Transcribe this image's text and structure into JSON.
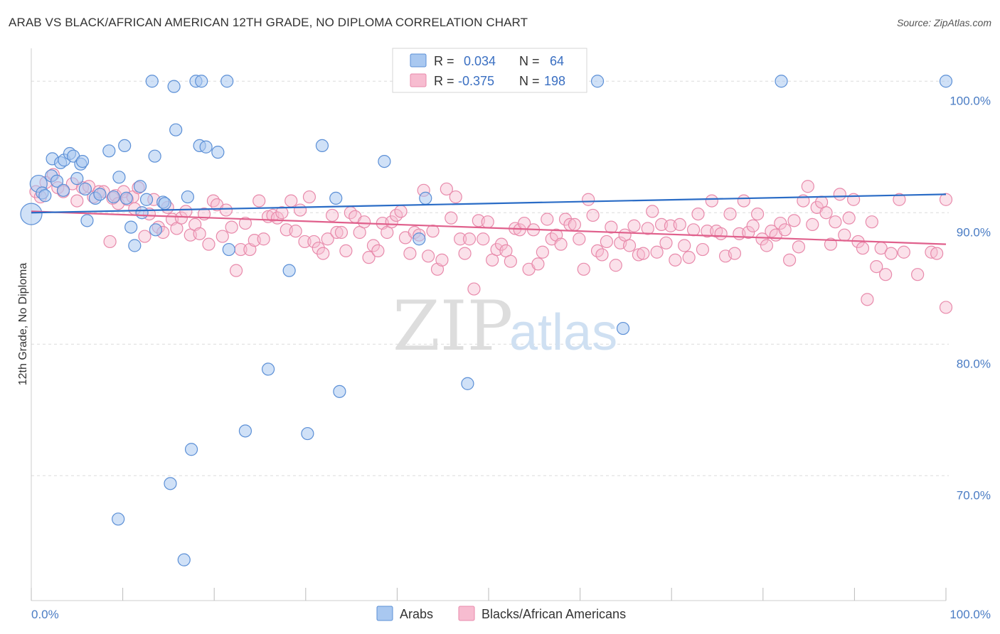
{
  "header": {
    "title": "ARAB VS BLACK/AFRICAN AMERICAN 12TH GRADE, NO DIPLOMA CORRELATION CHART",
    "source": "Source: ZipAtlas.com"
  },
  "watermark": {
    "zip": "ZIP",
    "atlas": "atlas"
  },
  "colors": {
    "arabs_fill": "#a9c8f0",
    "arabs_stroke": "#5b8fd6",
    "arabs_line": "#2a6cc6",
    "black_fill": "#f7bcd0",
    "black_stroke": "#e88aab",
    "black_line": "#e0608c",
    "grid": "#dcdcdc",
    "axis_text": "#4a7cc4"
  },
  "legend": {
    "rows": [
      {
        "r_label": "R =",
        "r_value": "0.034",
        "n_label": "N =",
        "n_value": "64"
      },
      {
        "r_label": "R =",
        "r_value": "-0.375",
        "n_label": "N =",
        "n_value": "198"
      }
    ]
  },
  "bottom_legend": {
    "arabs": "Arabs",
    "black": "Blacks/African Americans"
  },
  "chart_data": {
    "type": "scatter",
    "title": "ARAB VS BLACK/AFRICAN AMERICAN 12TH GRADE, NO DIPLOMA CORRELATION CHART",
    "xlabel": "",
    "ylabel": "12th Grade, No Diploma",
    "xlim": [
      0,
      100
    ],
    "ylim": [
      60.5,
      102.5
    ],
    "x_tick_labels": [
      "0.0%",
      "100.0%"
    ],
    "y_ticks": [
      70,
      80,
      90,
      100
    ],
    "y_tick_labels": [
      "70.0%",
      "80.0%",
      "90.0%",
      "100.0%"
    ],
    "grid": true,
    "legend_position": "top-center",
    "series": [
      {
        "name": "Arabs",
        "r": 0.034,
        "n": 64,
        "trend": {
          "y_at_0": 90.0,
          "y_at_100": 91.4
        },
        "points": [
          [
            0.0,
            89.9
          ],
          [
            0.8,
            92.2
          ],
          [
            1.2,
            91.5
          ],
          [
            1.5,
            91.3
          ],
          [
            2.2,
            92.8
          ],
          [
            2.3,
            94.1
          ],
          [
            2.8,
            92.4
          ],
          [
            3.2,
            93.8
          ],
          [
            3.5,
            91.7
          ],
          [
            3.6,
            94.0
          ],
          [
            4.2,
            94.5
          ],
          [
            4.6,
            94.3
          ],
          [
            5.0,
            92.6
          ],
          [
            5.4,
            93.7
          ],
          [
            5.6,
            93.9
          ],
          [
            5.9,
            91.8
          ],
          [
            6.1,
            89.4
          ],
          [
            7.0,
            91.1
          ],
          [
            7.5,
            91.4
          ],
          [
            8.5,
            94.7
          ],
          [
            9.0,
            91.2
          ],
          [
            9.6,
            92.7
          ],
          [
            10.2,
            95.1
          ],
          [
            10.4,
            91.1
          ],
          [
            10.9,
            88.9
          ],
          [
            11.3,
            87.5
          ],
          [
            11.9,
            92.0
          ],
          [
            12.1,
            90.0
          ],
          [
            12.6,
            91.0
          ],
          [
            13.2,
            100.0
          ],
          [
            13.5,
            94.3
          ],
          [
            13.6,
            88.7
          ],
          [
            14.4,
            90.8
          ],
          [
            14.6,
            90.7
          ],
          [
            15.6,
            99.6
          ],
          [
            15.8,
            96.3
          ],
          [
            17.1,
            91.2
          ],
          [
            18.0,
            100.0
          ],
          [
            18.4,
            95.1
          ],
          [
            18.6,
            100.0
          ],
          [
            19.1,
            95.0
          ],
          [
            20.4,
            94.6
          ],
          [
            21.4,
            100.0
          ],
          [
            21.6,
            87.2
          ],
          [
            25.9,
            78.1
          ],
          [
            28.2,
            85.6
          ],
          [
            31.8,
            95.1
          ],
          [
            33.3,
            91.1
          ],
          [
            33.7,
            76.4
          ],
          [
            38.6,
            93.9
          ],
          [
            42.4,
            88.0
          ],
          [
            43.1,
            91.1
          ],
          [
            47.3,
            100.0
          ],
          [
            47.7,
            77.0
          ],
          [
            61.9,
            100.0
          ],
          [
            64.7,
            81.2
          ],
          [
            82.0,
            100.0
          ],
          [
            100.0,
            100.0
          ],
          [
            23.4,
            73.4
          ],
          [
            30.2,
            73.2
          ],
          [
            17.5,
            72.0
          ],
          [
            15.2,
            69.4
          ],
          [
            9.5,
            66.7
          ],
          [
            16.7,
            63.6
          ]
        ]
      },
      {
        "name": "Blacks/African Americans",
        "r": -0.375,
        "n": 198,
        "trend": {
          "y_at_0": 90.1,
          "y_at_100": 87.6
        },
        "points": [
          [
            0.5,
            91.6
          ],
          [
            1.0,
            91.2
          ],
          [
            1.6,
            92.3
          ],
          [
            2.4,
            92.9
          ],
          [
            2.9,
            91.9
          ],
          [
            3.5,
            91.6
          ],
          [
            4.5,
            92.2
          ],
          [
            5.0,
            90.9
          ],
          [
            5.6,
            91.9
          ],
          [
            6.3,
            92.0
          ],
          [
            6.8,
            91.2
          ],
          [
            7.4,
            91.6
          ],
          [
            7.9,
            91.6
          ],
          [
            8.6,
            87.8
          ],
          [
            8.9,
            91.1
          ],
          [
            9.2,
            91.3
          ],
          [
            9.5,
            90.7
          ],
          [
            10.1,
            91.6
          ],
          [
            10.5,
            91.0
          ],
          [
            11.1,
            91.2
          ],
          [
            11.3,
            90.3
          ],
          [
            11.7,
            91.9
          ],
          [
            12.4,
            88.2
          ],
          [
            12.9,
            89.9
          ],
          [
            13.4,
            91.0
          ],
          [
            13.9,
            88.9
          ],
          [
            14.4,
            88.5
          ],
          [
            14.9,
            90.4
          ],
          [
            15.4,
            89.5
          ],
          [
            15.9,
            88.8
          ],
          [
            16.4,
            89.6
          ],
          [
            16.9,
            90.1
          ],
          [
            17.4,
            88.3
          ],
          [
            17.9,
            89.1
          ],
          [
            18.4,
            88.4
          ],
          [
            18.9,
            89.9
          ],
          [
            19.4,
            87.6
          ],
          [
            19.9,
            90.9
          ],
          [
            20.3,
            90.6
          ],
          [
            20.9,
            88.2
          ],
          [
            21.3,
            90.2
          ],
          [
            21.9,
            88.9
          ],
          [
            22.4,
            85.6
          ],
          [
            22.9,
            87.2
          ],
          [
            23.4,
            89.2
          ],
          [
            23.9,
            87.2
          ],
          [
            24.4,
            87.9
          ],
          [
            24.9,
            90.9
          ],
          [
            25.4,
            88.0
          ],
          [
            25.9,
            89.7
          ],
          [
            26.4,
            89.8
          ],
          [
            26.9,
            89.6
          ],
          [
            27.4,
            90.0
          ],
          [
            27.9,
            88.7
          ],
          [
            28.4,
            90.9
          ],
          [
            28.9,
            88.6
          ],
          [
            29.4,
            90.2
          ],
          [
            29.9,
            87.8
          ],
          [
            30.4,
            91.2
          ],
          [
            30.9,
            87.8
          ],
          [
            31.4,
            87.3
          ],
          [
            31.9,
            86.9
          ],
          [
            32.4,
            88.0
          ],
          [
            32.9,
            89.8
          ],
          [
            33.4,
            88.5
          ],
          [
            33.9,
            88.5
          ],
          [
            34.4,
            87.1
          ],
          [
            34.9,
            90.0
          ],
          [
            35.4,
            89.7
          ],
          [
            35.9,
            88.5
          ],
          [
            36.4,
            89.3
          ],
          [
            36.9,
            86.6
          ],
          [
            37.4,
            87.5
          ],
          [
            37.9,
            87.1
          ],
          [
            38.4,
            89.2
          ],
          [
            38.9,
            88.5
          ],
          [
            39.4,
            89.3
          ],
          [
            39.9,
            89.8
          ],
          [
            40.4,
            90.1
          ],
          [
            40.9,
            88.1
          ],
          [
            41.4,
            86.9
          ],
          [
            41.9,
            88.5
          ],
          [
            42.4,
            88.3
          ],
          [
            42.9,
            91.7
          ],
          [
            43.4,
            86.7
          ],
          [
            43.9,
            88.6
          ],
          [
            44.4,
            85.7
          ],
          [
            44.9,
            86.4
          ],
          [
            45.4,
            91.8
          ],
          [
            45.9,
            89.6
          ],
          [
            46.4,
            91.2
          ],
          [
            46.9,
            88.0
          ],
          [
            47.4,
            86.9
          ],
          [
            47.9,
            88.0
          ],
          [
            48.4,
            84.2
          ],
          [
            48.9,
            89.4
          ],
          [
            49.4,
            88.0
          ],
          [
            49.9,
            89.3
          ],
          [
            50.4,
            86.4
          ],
          [
            50.9,
            87.2
          ],
          [
            51.4,
            87.6
          ],
          [
            51.9,
            87.1
          ],
          [
            52.4,
            86.3
          ],
          [
            52.9,
            88.8
          ],
          [
            53.4,
            88.7
          ],
          [
            53.9,
            89.2
          ],
          [
            54.4,
            85.7
          ],
          [
            54.9,
            88.7
          ],
          [
            55.4,
            86.1
          ],
          [
            55.9,
            87.0
          ],
          [
            56.4,
            89.5
          ],
          [
            56.9,
            88.0
          ],
          [
            57.4,
            88.3
          ],
          [
            57.9,
            87.6
          ],
          [
            58.4,
            89.5
          ],
          [
            58.9,
            89.1
          ],
          [
            59.4,
            89.1
          ],
          [
            59.9,
            88.0
          ],
          [
            60.4,
            85.7
          ],
          [
            60.9,
            91.0
          ],
          [
            61.4,
            89.8
          ],
          [
            61.9,
            87.1
          ],
          [
            62.4,
            86.8
          ],
          [
            62.9,
            87.8
          ],
          [
            63.4,
            88.9
          ],
          [
            63.9,
            86.0
          ],
          [
            64.4,
            87.7
          ],
          [
            64.9,
            88.3
          ],
          [
            65.4,
            87.5
          ],
          [
            65.9,
            89.0
          ],
          [
            66.4,
            86.8
          ],
          [
            66.9,
            86.9
          ],
          [
            67.4,
            88.8
          ],
          [
            67.9,
            90.1
          ],
          [
            68.4,
            87.0
          ],
          [
            68.9,
            89.1
          ],
          [
            69.4,
            87.7
          ],
          [
            69.9,
            89.0
          ],
          [
            70.4,
            86.4
          ],
          [
            70.9,
            89.1
          ],
          [
            71.4,
            87.5
          ],
          [
            71.9,
            86.6
          ],
          [
            72.4,
            88.7
          ],
          [
            72.9,
            89.9
          ],
          [
            73.4,
            87.2
          ],
          [
            73.9,
            88.6
          ],
          [
            74.4,
            90.9
          ],
          [
            74.9,
            88.6
          ],
          [
            75.4,
            88.4
          ],
          [
            75.9,
            86.7
          ],
          [
            76.4,
            89.9
          ],
          [
            76.9,
            86.9
          ],
          [
            77.4,
            88.4
          ],
          [
            77.9,
            90.9
          ],
          [
            78.4,
            88.5
          ],
          [
            78.9,
            89.0
          ],
          [
            79.4,
            89.9
          ],
          [
            79.9,
            88.0
          ],
          [
            80.4,
            87.5
          ],
          [
            80.9,
            88.6
          ],
          [
            81.4,
            88.3
          ],
          [
            81.9,
            89.2
          ],
          [
            82.4,
            88.7
          ],
          [
            82.9,
            86.4
          ],
          [
            83.4,
            89.4
          ],
          [
            83.9,
            87.4
          ],
          [
            84.4,
            90.9
          ],
          [
            84.9,
            92.0
          ],
          [
            85.4,
            89.1
          ],
          [
            85.9,
            90.4
          ],
          [
            86.4,
            90.8
          ],
          [
            86.9,
            90.0
          ],
          [
            87.4,
            87.6
          ],
          [
            87.9,
            89.3
          ],
          [
            88.4,
            91.4
          ],
          [
            88.9,
            88.3
          ],
          [
            89.4,
            89.6
          ],
          [
            89.9,
            91.0
          ],
          [
            90.4,
            87.8
          ],
          [
            90.9,
            87.3
          ],
          [
            91.4,
            83.4
          ],
          [
            91.9,
            89.3
          ],
          [
            92.4,
            85.9
          ],
          [
            92.9,
            87.3
          ],
          [
            93.4,
            85.3
          ],
          [
            94.0,
            86.9
          ],
          [
            94.9,
            91.0
          ],
          [
            95.4,
            87.0
          ],
          [
            96.9,
            85.3
          ],
          [
            98.4,
            87.0
          ],
          [
            99.0,
            86.9
          ],
          [
            100.0,
            82.8
          ],
          [
            100.0,
            91.0
          ]
        ]
      }
    ]
  }
}
